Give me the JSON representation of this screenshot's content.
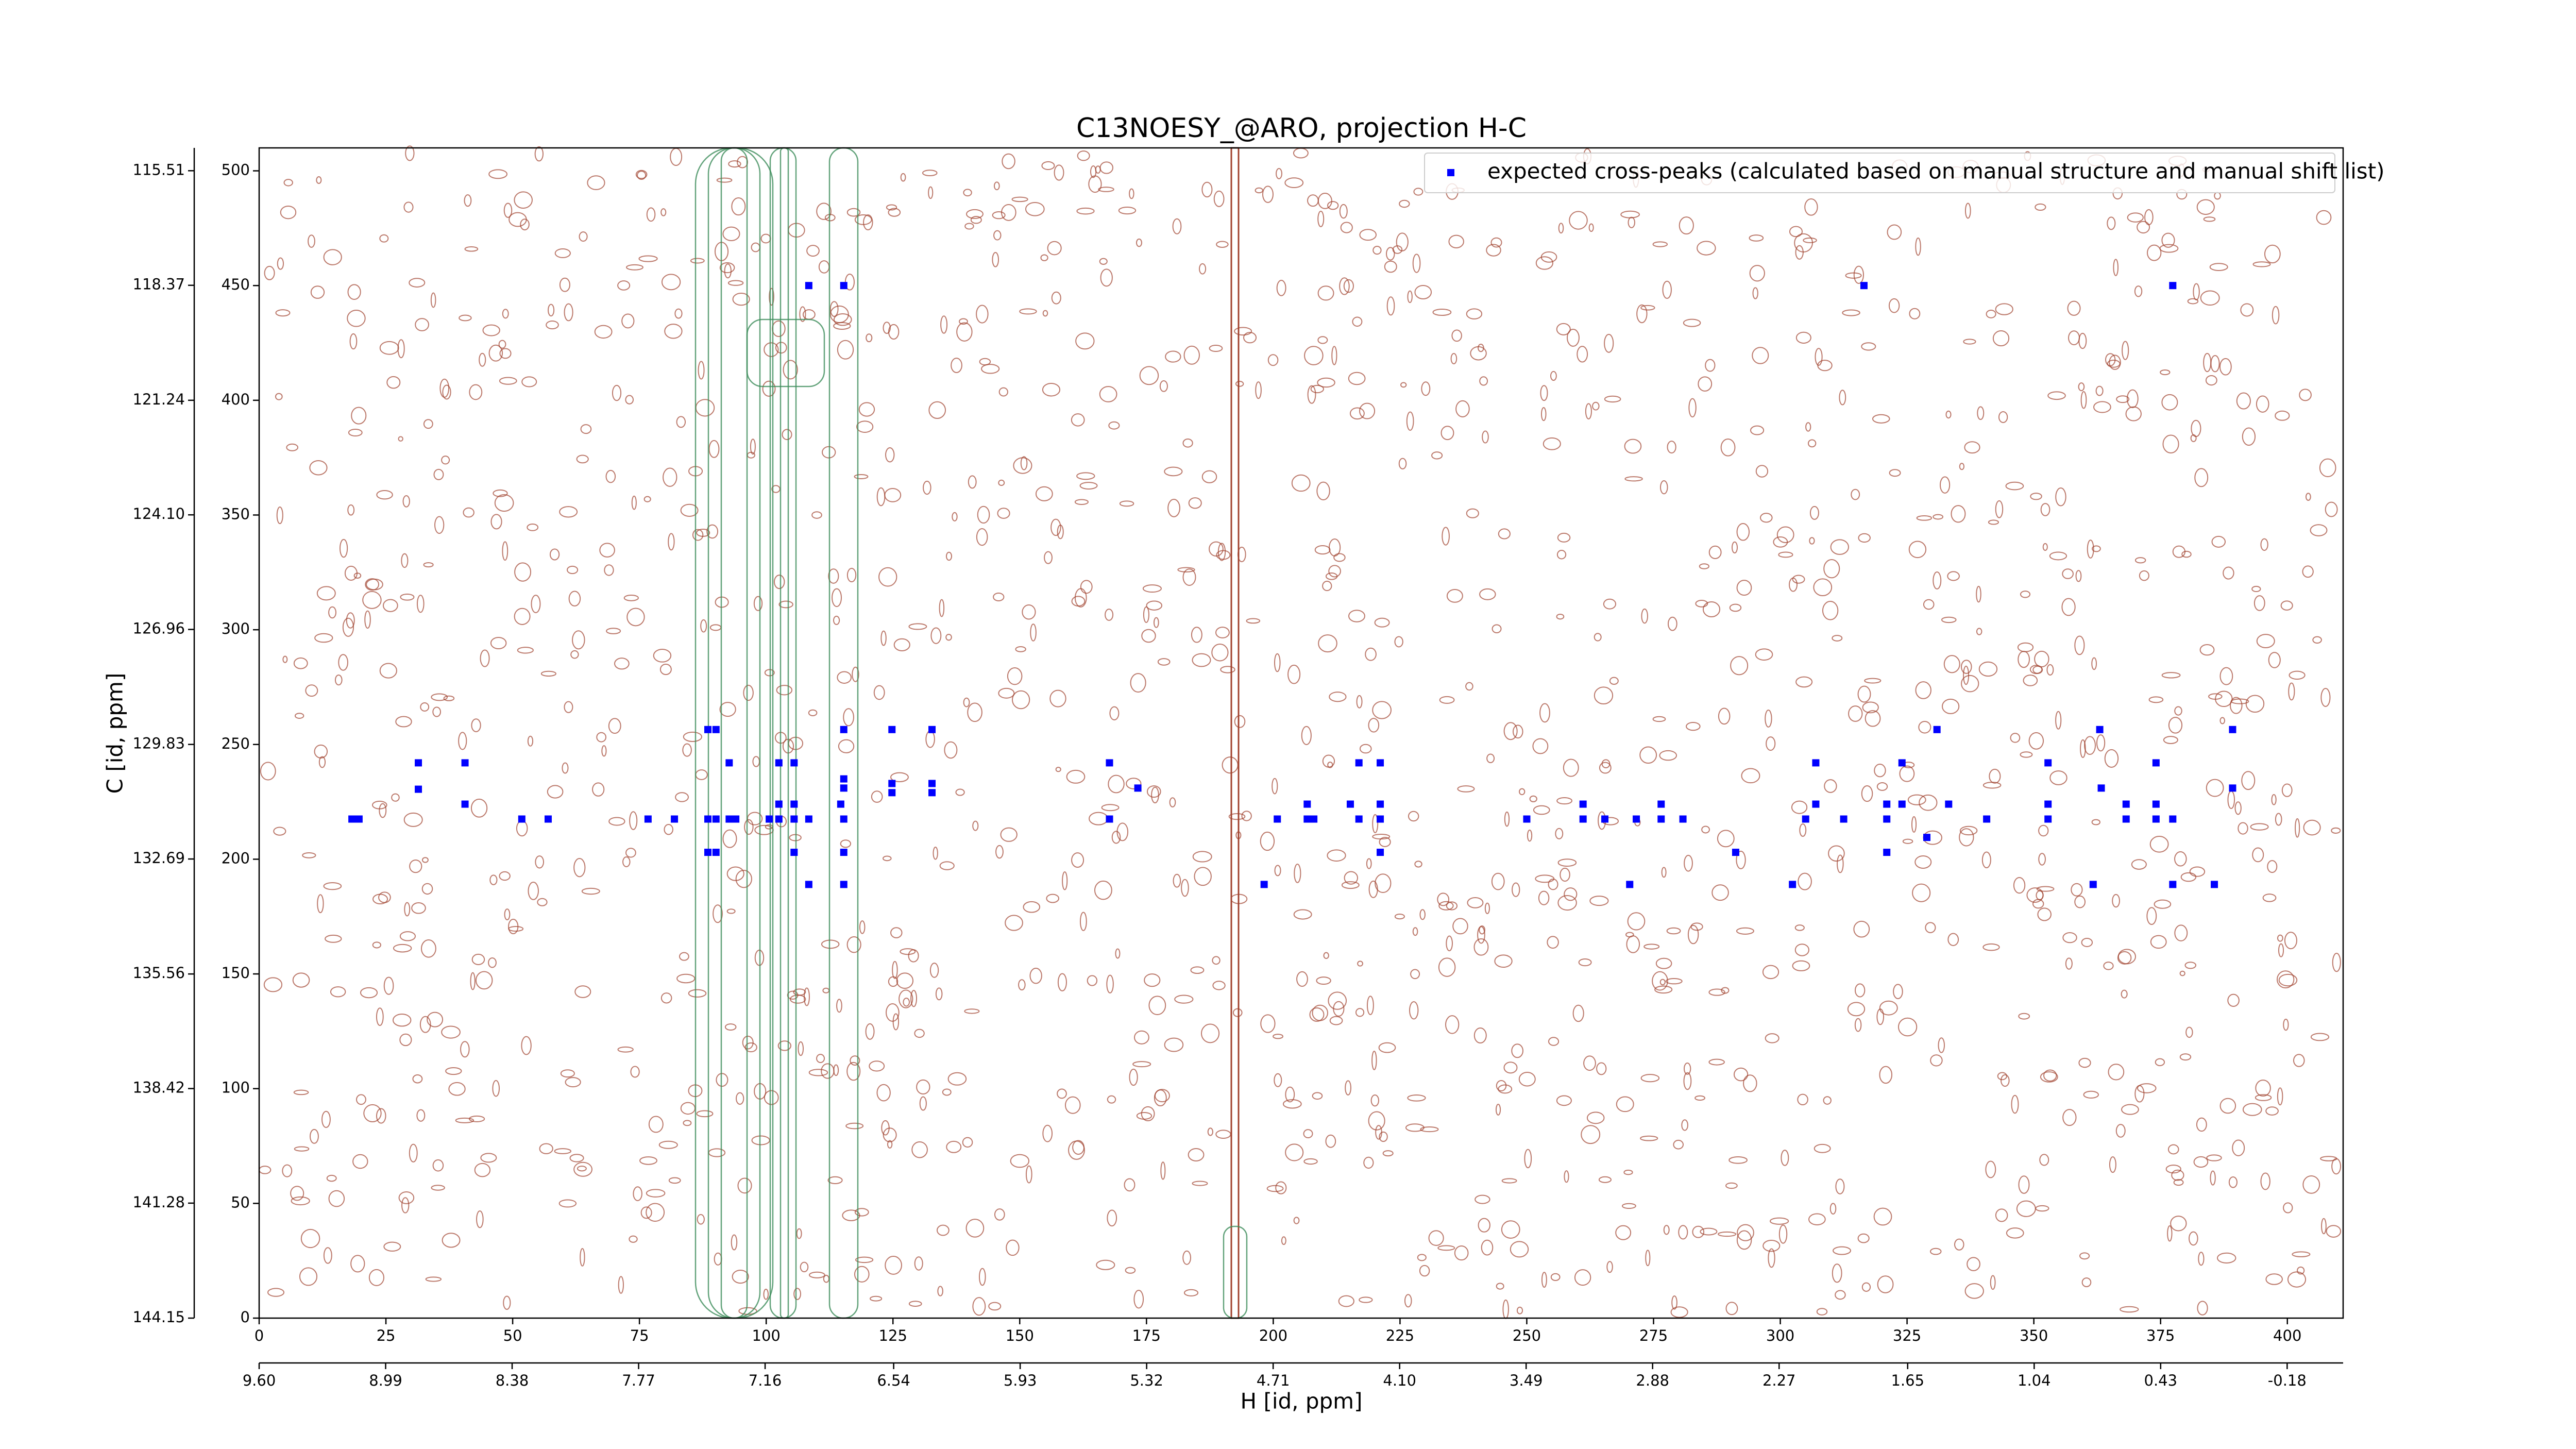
{
  "chart_data": {
    "type": "scatter",
    "title": "C13NOESY_@ARO, projection H-C",
    "xlabel": "H [id, ppm]",
    "ylabel": "C [id, ppm]",
    "xlim": [
      0,
      411
    ],
    "xticks": [
      0,
      25,
      50,
      75,
      100,
      125,
      150,
      175,
      200,
      225,
      250,
      275,
      300,
      325,
      350,
      375,
      400
    ],
    "ylim": [
      0,
      510
    ],
    "yticks": [
      0,
      50,
      100,
      150,
      200,
      250,
      300,
      350,
      400,
      450,
      500
    ],
    "x2lim": [
      9.6,
      -0.45
    ],
    "x2ticks": [
      {
        "value": 9.6,
        "label": "9.60"
      },
      8.99,
      8.38,
      7.77,
      7.16,
      6.54,
      5.93,
      5.32,
      4.71,
      {
        "value": 4.1,
        "label": "4.10"
      },
      3.49,
      2.88,
      2.27,
      1.65,
      1.04,
      0.43,
      -0.18
    ],
    "y2lim": [
      144.15,
      114.94
    ],
    "y2ticks": [
      144.15,
      141.28,
      138.42,
      135.56,
      132.69,
      129.83,
      126.96,
      {
        "value": 124.1,
        "label": "124.10"
      },
      121.24,
      118.37,
      115.51
    ],
    "legend": "upper right",
    "series": [
      {
        "name": "expected cross-peaks (calculated based on manual structure and manual shift list)",
        "color": "#0000ff",
        "x": [
          108.4,
          115.3,
          316.5,
          377.4,
          88.5,
          90.1,
          115.3,
          124.8,
          132.7,
          330.9,
          363.0,
          389.2,
          31.4,
          40.6,
          92.7,
          102.5,
          105.5,
          167.7,
          216.9,
          221.1,
          307.0,
          324.0,
          352.8,
          374.1,
          115.3,
          124.8,
          132.7,
          115.3,
          173.3,
          363.3,
          389.2,
          31.4,
          124.8,
          132.7,
          40.6,
          102.5,
          105.5,
          114.7,
          206.7,
          215.2,
          221.1,
          261.1,
          276.5,
          307.0,
          321.0,
          324.0,
          333.2,
          352.8,
          368.2,
          374.1,
          18.3,
          19.7,
          51.8,
          57.0,
          76.7,
          81.9,
          88.5,
          90.1,
          92.7,
          94.0,
          100.6,
          102.5,
          105.5,
          108.4,
          115.3,
          167.7,
          200.8,
          206.7,
          208.0,
          216.9,
          221.1,
          250.0,
          261.1,
          265.4,
          271.6,
          276.5,
          280.8,
          305.0,
          312.5,
          321.0,
          340.7,
          352.8,
          368.2,
          374.1,
          377.4,
          328.9,
          88.5,
          90.1,
          105.5,
          115.3,
          221.1,
          291.2,
          321.0,
          108.4,
          115.3,
          198.2,
          270.3,
          302.4,
          361.7,
          377.4,
          385.6
        ],
        "y": [
          450,
          450,
          450,
          450,
          256.5,
          256.5,
          256.5,
          256.5,
          256.5,
          256.5,
          256.5,
          256.5,
          242,
          242,
          242,
          242,
          242,
          242,
          242,
          242,
          242,
          242,
          242,
          242,
          235,
          233,
          233,
          231,
          231,
          231,
          231,
          230.5,
          229,
          229,
          224,
          224,
          224,
          224,
          224,
          224,
          224,
          224,
          224,
          224,
          224,
          224,
          224,
          224,
          224,
          224,
          217.5,
          217.5,
          217.5,
          217.5,
          217.5,
          217.5,
          217.5,
          217.5,
          217.5,
          217.5,
          217.5,
          217.5,
          217.5,
          217.5,
          217.5,
          217.5,
          217.5,
          217.5,
          217.5,
          217.5,
          217.5,
          217.5,
          217.5,
          217.5,
          217.5,
          217.5,
          217.5,
          217.5,
          217.5,
          217.5,
          217.5,
          217.5,
          217.5,
          217.5,
          217.5,
          209.5,
          203,
          203,
          203,
          203,
          203,
          203,
          203,
          189,
          189,
          189,
          189,
          189,
          189,
          189,
          189
        ]
      }
    ]
  }
}
